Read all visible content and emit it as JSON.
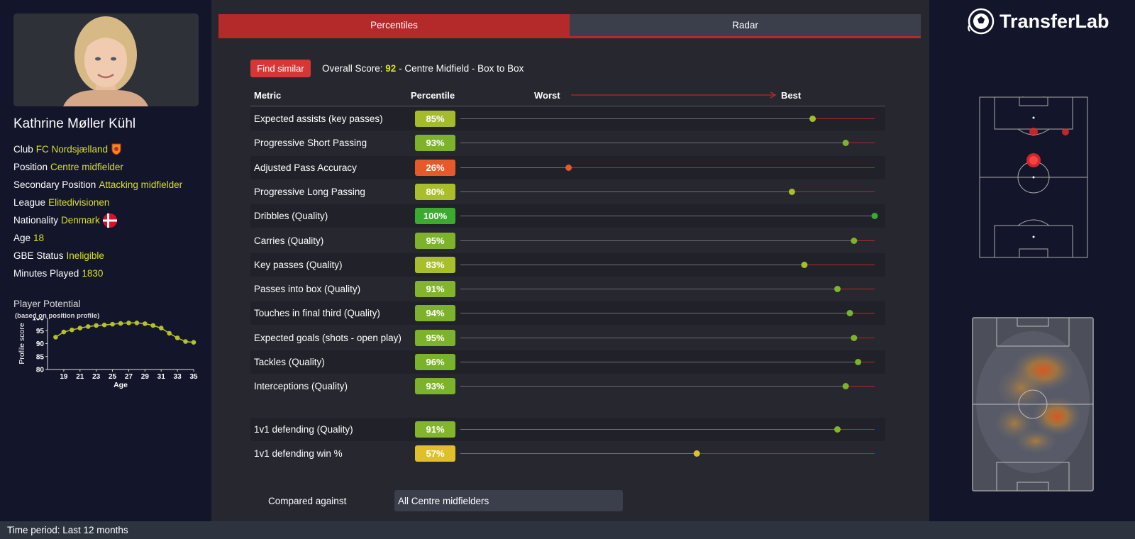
{
  "player": {
    "name": "Kathrine Møller Kühl",
    "info": [
      {
        "label": "Club",
        "value": "FC Nordsjælland"
      },
      {
        "label": "Position",
        "value": "Centre midfielder"
      },
      {
        "label": "Secondary Position",
        "value": "Attacking midfielder"
      },
      {
        "label": "League",
        "value": "Elitedivisionen"
      },
      {
        "label": "Nationality",
        "value": "Denmark"
      },
      {
        "label": "Age",
        "value": "18"
      },
      {
        "label": "GBE Status",
        "value": "Ineligible"
      },
      {
        "label": "Minutes Played",
        "value": "1830"
      }
    ]
  },
  "potential": {
    "title": "Player Potential",
    "subtitle": "(based on position profile)"
  },
  "chart_data": {
    "type": "line",
    "xlabel": "Age",
    "ylabel": "Profile score",
    "ylim": [
      80,
      100
    ],
    "xlim": [
      17,
      35
    ],
    "xticks": [
      "19",
      "21",
      "23",
      "25",
      "27",
      "29",
      "31",
      "33",
      "35"
    ],
    "yticks": [
      "80",
      "85",
      "90",
      "95",
      "100"
    ],
    "x": [
      18,
      19,
      20,
      21,
      22,
      23,
      24,
      25,
      26,
      27,
      28,
      29,
      30,
      31,
      32,
      33,
      34,
      35
    ],
    "values": [
      92.5,
      94.5,
      95.3,
      96.0,
      96.6,
      97.0,
      97.2,
      97.5,
      97.8,
      98.0,
      98.0,
      97.7,
      97.0,
      96.0,
      94.0,
      92.2,
      90.8,
      90.5
    ],
    "color": "#b5c12b"
  },
  "tabs": {
    "percentiles": "Percentiles",
    "radar": "Radar"
  },
  "find_similar": "Find similar",
  "overall": {
    "label": "Overall Score:",
    "score": "92",
    "suffix": "- Centre Midfield - Box to Box"
  },
  "table": {
    "col_metric": "Metric",
    "col_percentile": "Percentile",
    "worst": "Worst",
    "best": "Best"
  },
  "metrics": [
    {
      "name": "Expected assists (key passes)",
      "label": "85%",
      "value": 85,
      "color": "#a4bb2b"
    },
    {
      "name": "Progressive Short Passing",
      "label": "93%",
      "value": 93,
      "color": "#7cb32b"
    },
    {
      "name": "Adjusted Pass Accuracy",
      "label": "26%",
      "value": 26,
      "color": "#e65a2a"
    },
    {
      "name": "Progressive Long Passing",
      "label": "80%",
      "value": 80,
      "color": "#a8be2b"
    },
    {
      "name": "Dribbles (Quality)",
      "label": "100%",
      "value": 100,
      "color": "#3caa2e"
    },
    {
      "name": "Carries (Quality)",
      "label": "95%",
      "value": 95,
      "color": "#7cb32b"
    },
    {
      "name": "Key passes (Quality)",
      "label": "83%",
      "value": 83,
      "color": "#a8be2b"
    },
    {
      "name": "Passes into box (Quality)",
      "label": "91%",
      "value": 91,
      "color": "#82b52b"
    },
    {
      "name": "Touches in final third (Quality)",
      "label": "94%",
      "value": 94,
      "color": "#7cb32b"
    },
    {
      "name": "Expected goals (shots - open play)",
      "label": "95%",
      "value": 95,
      "color": "#7cb32b"
    },
    {
      "name": "Tackles (Quality)",
      "label": "96%",
      "value": 96,
      "color": "#79b22b"
    },
    {
      "name": "Interceptions (Quality)",
      "label": "93%",
      "value": 93,
      "color": "#7cb32b"
    }
  ],
  "defending_metrics": [
    {
      "name": "1v1 defending (Quality)",
      "label": "91%",
      "value": 91,
      "color": "#82b52b"
    },
    {
      "name": "1v1 defending win %",
      "label": "57%",
      "value": 57,
      "color": "#e0c02a"
    }
  ],
  "compared": {
    "label": "Compared against",
    "value": "All Centre midfielders"
  },
  "logo": "TransferLab",
  "footer": "Time period: Last 12 months",
  "colors": {
    "accent_red": "#b42a2a",
    "highlight_yellow": "#d8e02a"
  }
}
